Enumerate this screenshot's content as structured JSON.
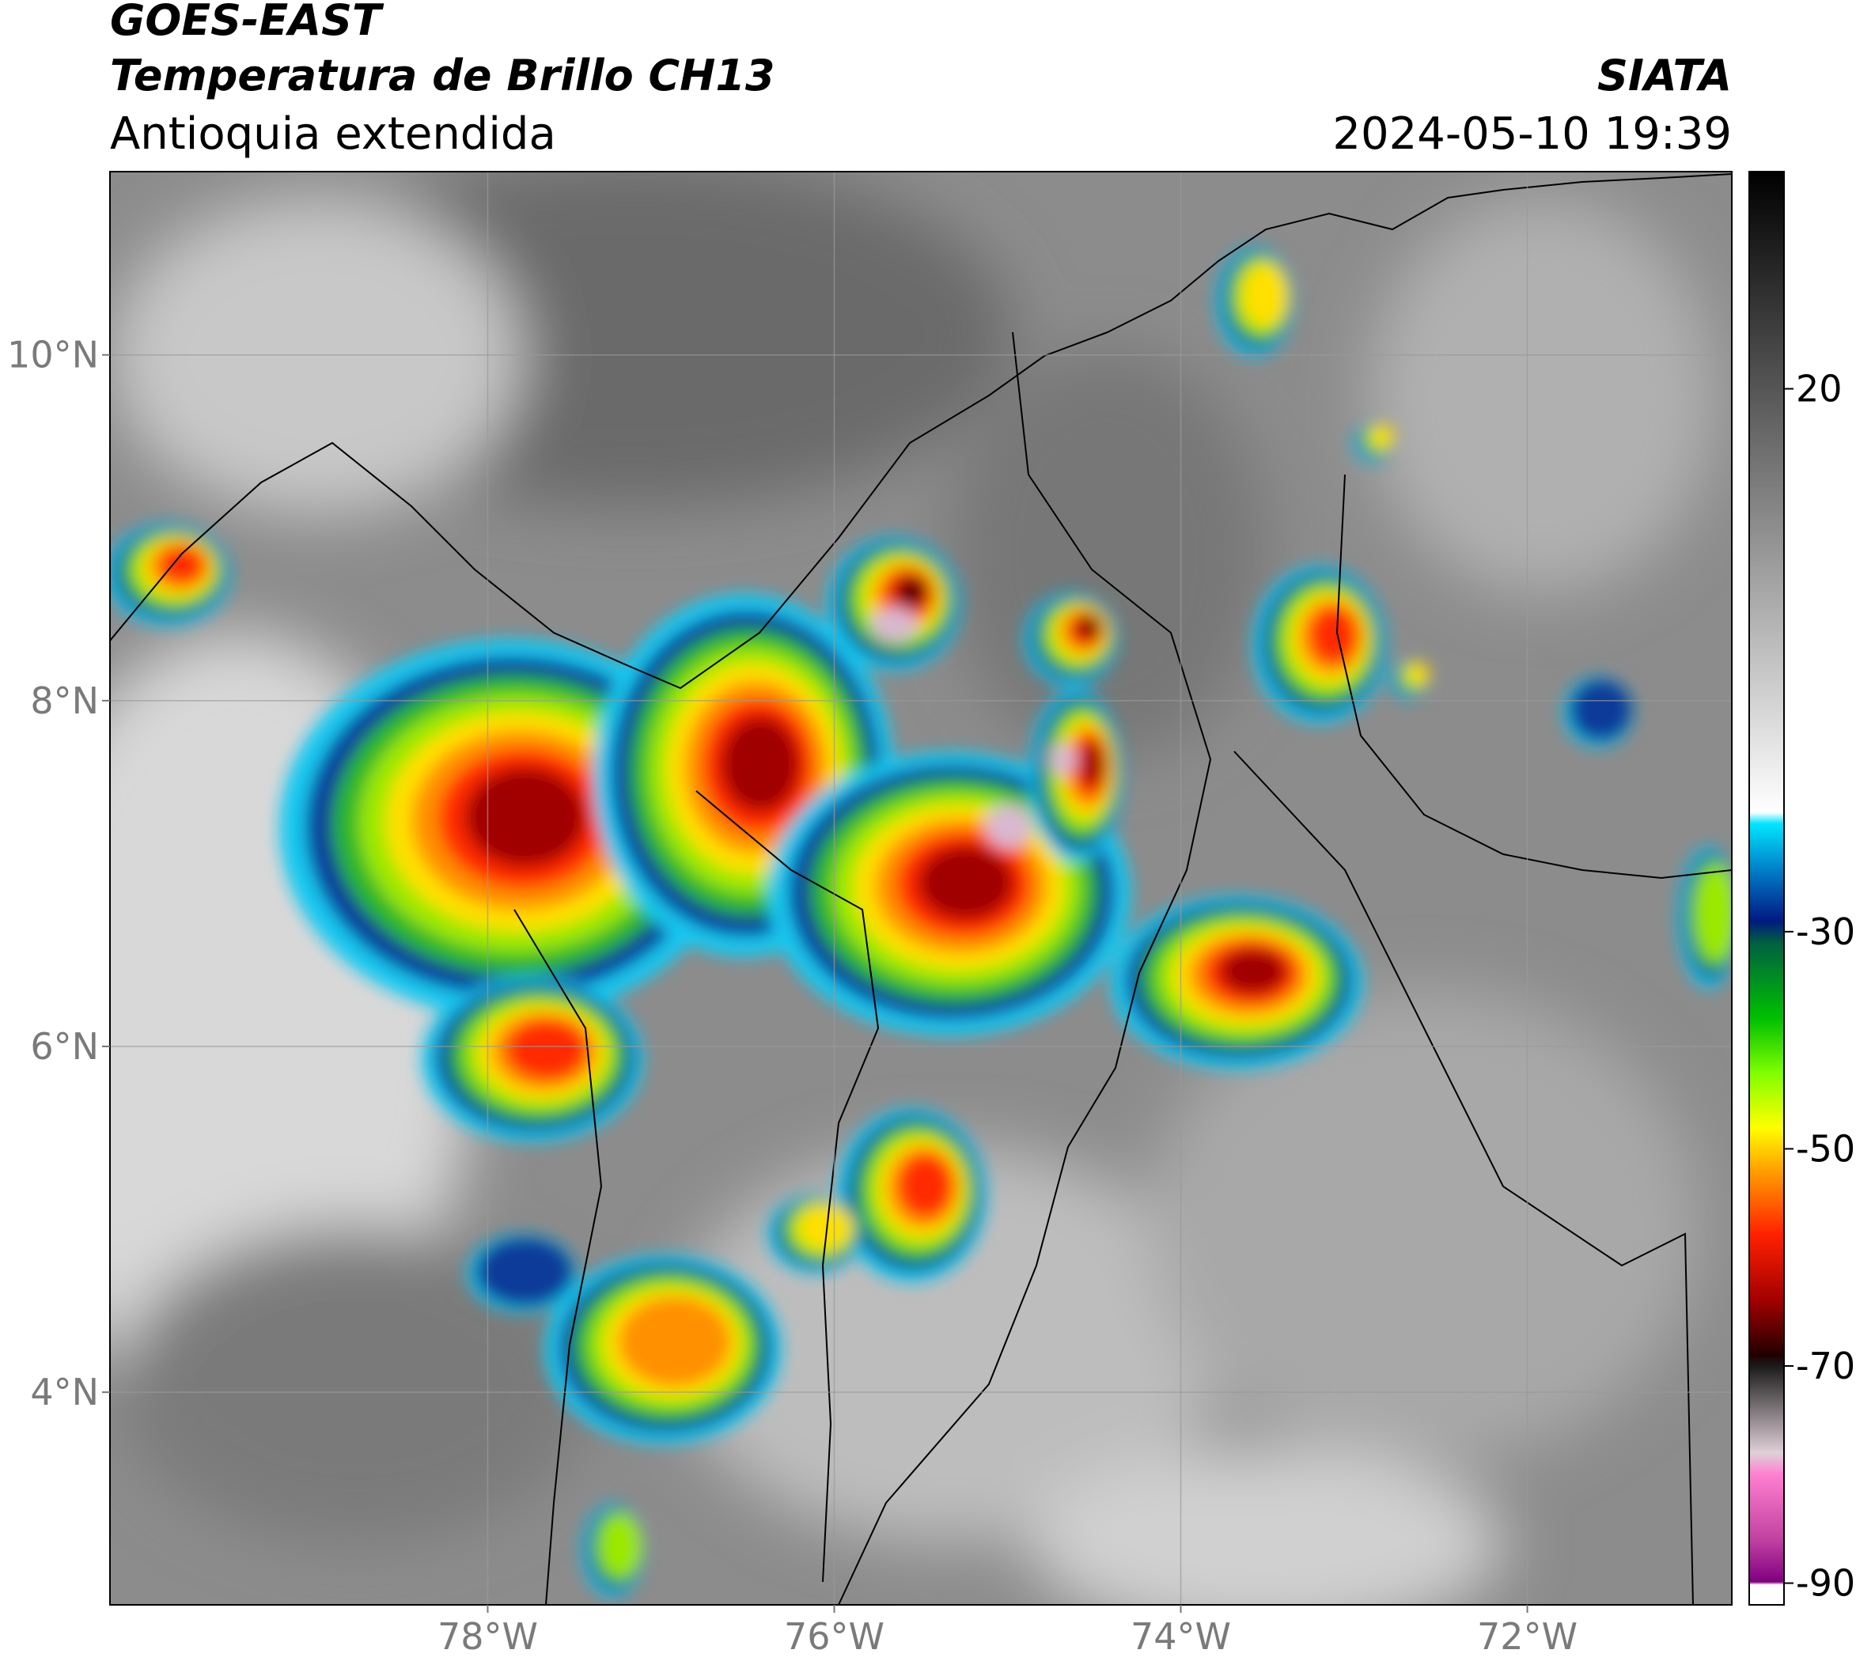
{
  "header": {
    "title": "GOES-EAST",
    "subtitle": "Temperatura de Brillo CH13",
    "region": "Antioquia extendida",
    "source": "SIATA",
    "datetime": "2024-05-10 19:39"
  },
  "map": {
    "xlim": [
      -80.18,
      -70.82
    ],
    "ylim": [
      2.77,
      11.06
    ],
    "xticks": [
      {
        "value": -78,
        "label": "78°W"
      },
      {
        "value": -76,
        "label": "76°W"
      },
      {
        "value": -74,
        "label": "74°W"
      },
      {
        "value": -72,
        "label": "72°W"
      }
    ],
    "yticks": [
      {
        "value": 10,
        "label": "10°N"
      },
      {
        "value": 8,
        "label": "8°N"
      },
      {
        "value": 6,
        "label": "6°N"
      },
      {
        "value": 4,
        "label": "4°N"
      }
    ],
    "grid": true
  },
  "colorbar": {
    "lim": [
      -92,
      40
    ],
    "ticks": [
      20,
      -30,
      -50,
      -70,
      -90
    ]
  }
}
